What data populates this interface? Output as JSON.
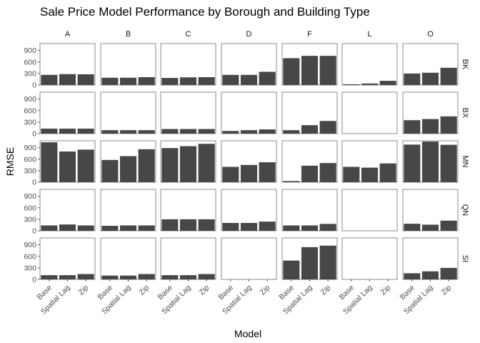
{
  "chart_data": {
    "type": "bar",
    "title": "Sale Price Model Performance by Borough and Building Type",
    "xlabel": "Model",
    "ylabel": "RMSE",
    "columns": [
      "A",
      "B",
      "C",
      "D",
      "F",
      "L",
      "O"
    ],
    "rows": [
      "BK",
      "BX",
      "MN",
      "QN",
      "SI"
    ],
    "categories": [
      "Base",
      "Spatial Lag",
      "Zip"
    ],
    "y_ticks": [
      0,
      300,
      600,
      900
    ],
    "ylim": [
      0,
      1080
    ],
    "grid": false,
    "bar_color": "#474747",
    "panels": [
      {
        "row": "BK",
        "col": "A",
        "values": [
          265,
          285,
          280
        ]
      },
      {
        "row": "BK",
        "col": "B",
        "values": [
          190,
          190,
          205
        ]
      },
      {
        "row": "BK",
        "col": "C",
        "values": [
          185,
          200,
          205
        ]
      },
      {
        "row": "BK",
        "col": "D",
        "values": [
          265,
          265,
          345
        ]
      },
      {
        "row": "BK",
        "col": "F",
        "values": [
          700,
          760,
          760
        ]
      },
      {
        "row": "BK",
        "col": "L",
        "values": [
          20,
          40,
          110
        ]
      },
      {
        "row": "BK",
        "col": "O",
        "values": [
          300,
          320,
          450
        ]
      },
      {
        "row": "BX",
        "col": "A",
        "values": [
          130,
          130,
          130
        ]
      },
      {
        "row": "BX",
        "col": "B",
        "values": [
          90,
          90,
          90
        ]
      },
      {
        "row": "BX",
        "col": "C",
        "values": [
          120,
          120,
          120
        ]
      },
      {
        "row": "BX",
        "col": "D",
        "values": [
          70,
          90,
          110
        ]
      },
      {
        "row": "BX",
        "col": "F",
        "values": [
          90,
          220,
          330
        ]
      },
      {
        "row": "BX",
        "col": "L",
        "values": null
      },
      {
        "row": "BX",
        "col": "O",
        "values": [
          350,
          380,
          450
        ]
      },
      {
        "row": "MN",
        "col": "A",
        "values": [
          1040,
          800,
          850
        ]
      },
      {
        "row": "MN",
        "col": "B",
        "values": [
          580,
          680,
          860
        ]
      },
      {
        "row": "MN",
        "col": "C",
        "values": [
          890,
          940,
          1000
        ]
      },
      {
        "row": "MN",
        "col": "D",
        "values": [
          400,
          450,
          520
        ]
      },
      {
        "row": "MN",
        "col": "F",
        "values": [
          30,
          430,
          500
        ]
      },
      {
        "row": "MN",
        "col": "L",
        "values": [
          400,
          380,
          490
        ]
      },
      {
        "row": "MN",
        "col": "O",
        "values": [
          980,
          1060,
          975
        ]
      },
      {
        "row": "QN",
        "col": "A",
        "values": [
          140,
          165,
          140
        ]
      },
      {
        "row": "QN",
        "col": "B",
        "values": [
          130,
          140,
          140
        ]
      },
      {
        "row": "QN",
        "col": "C",
        "values": [
          300,
          300,
          300
        ]
      },
      {
        "row": "QN",
        "col": "D",
        "values": [
          205,
          205,
          240
        ]
      },
      {
        "row": "QN",
        "col": "F",
        "values": [
          140,
          140,
          180
        ]
      },
      {
        "row": "QN",
        "col": "L",
        "values": null
      },
      {
        "row": "QN",
        "col": "O",
        "values": [
          185,
          160,
          265
        ]
      },
      {
        "row": "SI",
        "col": "A",
        "values": [
          110,
          110,
          140
        ]
      },
      {
        "row": "SI",
        "col": "B",
        "values": [
          100,
          100,
          140
        ]
      },
      {
        "row": "SI",
        "col": "C",
        "values": [
          110,
          110,
          140
        ]
      },
      {
        "row": "SI",
        "col": "D",
        "values": [
          0,
          0,
          0
        ]
      },
      {
        "row": "SI",
        "col": "F",
        "values": [
          490,
          840,
          880
        ]
      },
      {
        "row": "SI",
        "col": "L",
        "values": [
          0,
          0,
          0
        ]
      },
      {
        "row": "SI",
        "col": "O",
        "values": [
          160,
          210,
          300
        ]
      }
    ]
  }
}
